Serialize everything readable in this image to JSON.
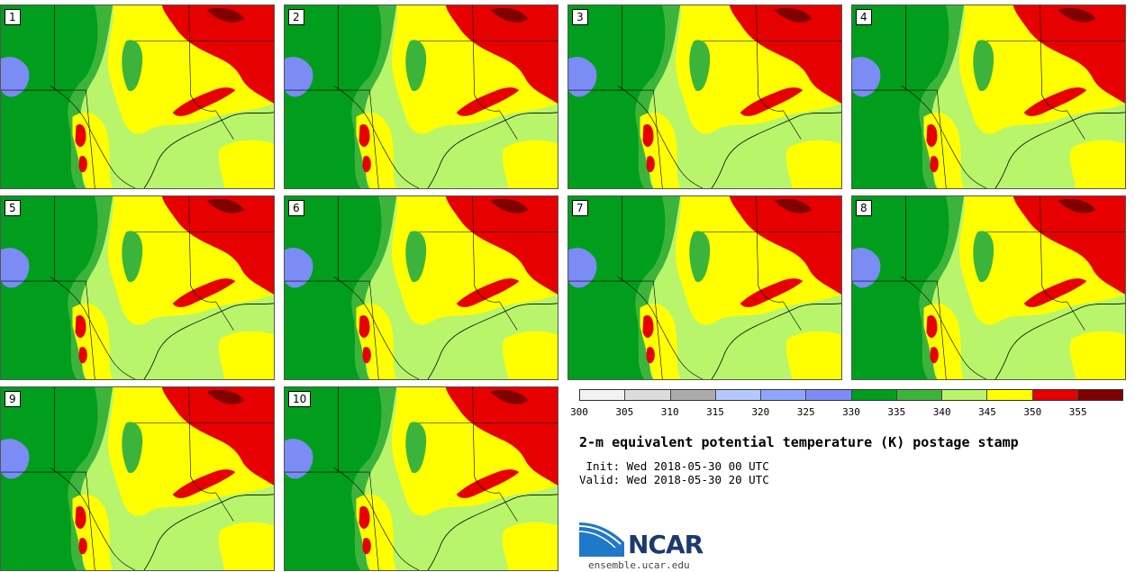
{
  "panels": [
    {
      "label": "1"
    },
    {
      "label": "2"
    },
    {
      "label": "3"
    },
    {
      "label": "4"
    },
    {
      "label": "5"
    },
    {
      "label": "6"
    },
    {
      "label": "7"
    },
    {
      "label": "8"
    },
    {
      "label": "9"
    },
    {
      "label": "10"
    }
  ],
  "colorbar": {
    "colors": [
      "#f2f2f2",
      "#dcdcdc",
      "#ababab",
      "#b3c8ff",
      "#8ea6ff",
      "#7b8cf5",
      "#009e1c",
      "#3cb43c",
      "#b8f56a",
      "#ffff00",
      "#e60000",
      "#800000"
    ],
    "ticks": [
      "300",
      "305",
      "310",
      "315",
      "320",
      "325",
      "330",
      "335",
      "340",
      "345",
      "350",
      "355"
    ]
  },
  "title": "2-m equivalent potential temperature (K) postage stamp",
  "init": " Init: Wed 2018-05-30 00 UTC",
  "valid": "Valid: Wed 2018-05-30 20 UTC",
  "logo": {
    "text": "NCAR",
    "url": "ensemble.ucar.edu"
  }
}
